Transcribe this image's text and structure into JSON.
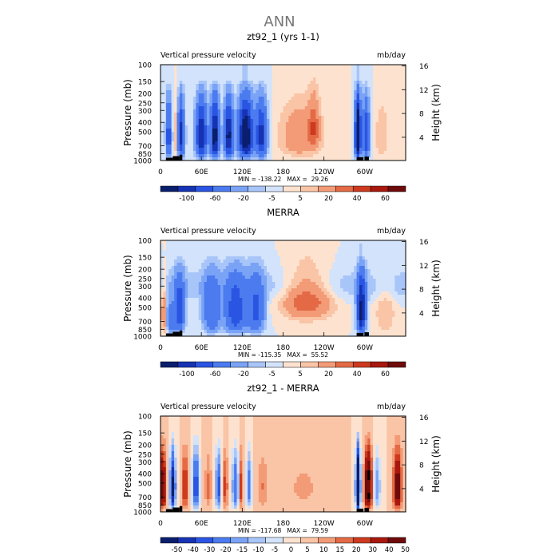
{
  "figure": {
    "title": "ANN"
  },
  "colors": {
    "scale1": [
      "#0a1e6e",
      "#1633b4",
      "#2a55e2",
      "#4b7bef",
      "#7aa3f6",
      "#a8c5f9",
      "#d2e3fb",
      "#fde3cf",
      "#fac4a6",
      "#f39b76",
      "#e46a46",
      "#cd3a1f",
      "#a8180d",
      "#6e0a0a"
    ],
    "scale2": [
      "#0a1e6e",
      "#1633b4",
      "#2a55e2",
      "#4b7bef",
      "#7aa3f6",
      "#a8c5f9",
      "#d2e3fb",
      "#fde3cf",
      "#fac4a6",
      "#f39b76",
      "#e46a46",
      "#cd3a1f",
      "#a8180d",
      "#6e0a0a"
    ],
    "topography": "#000000"
  },
  "chart_data": [
    {
      "type": "heatmap",
      "title": "zt92_1 (yrs 1-1)",
      "subtitle_left": "Vertical pressure velocity",
      "subtitle_right": "mb/day",
      "ylabel": "Pressure (mb)",
      "ylabel_right": "Height (km)",
      "x_ticks": [
        "0",
        "60E",
        "120E",
        "180",
        "120W",
        "60W"
      ],
      "y_ticks": [
        "100",
        "150",
        "200",
        "250",
        "300",
        "400",
        "500",
        "700",
        "850",
        "1000"
      ],
      "y_right_ticks": [
        "16",
        "12",
        "8",
        "4"
      ],
      "stats": "MIN = -138.22   MAX =  29.26",
      "colorbar_labels": [
        "-100",
        "-60",
        "-20",
        "-5",
        "5",
        "20",
        "40",
        "60"
      ],
      "colorbar_levels": [
        -100,
        -80,
        -60,
        -40,
        -20,
        -10,
        -5,
        0,
        5,
        10,
        20,
        30,
        40,
        60
      ],
      "min": -138.22,
      "max": 29.26
    },
    {
      "type": "heatmap",
      "title": "MERRA",
      "subtitle_left": "Vertical pressure velocity",
      "subtitle_right": "mb/day",
      "ylabel": "Pressure (mb)",
      "ylabel_right": "Height (km)",
      "x_ticks": [
        "0",
        "60E",
        "120E",
        "180",
        "120W",
        "60W"
      ],
      "y_ticks": [
        "100",
        "150",
        "200",
        "250",
        "300",
        "400",
        "500",
        "700",
        "850",
        "1000"
      ],
      "y_right_ticks": [
        "16",
        "12",
        "8",
        "4"
      ],
      "stats": "MIN = -115.35   MAX =  55.52",
      "colorbar_labels": [
        "-100",
        "-60",
        "-20",
        "-5",
        "5",
        "20",
        "40",
        "60"
      ],
      "colorbar_levels": [
        -100,
        -80,
        -60,
        -40,
        -20,
        -10,
        -5,
        0,
        5,
        10,
        20,
        30,
        40,
        60
      ],
      "min": -115.35,
      "max": 55.52
    },
    {
      "type": "heatmap",
      "title": "zt92_1 - MERRA",
      "subtitle_left": "Vertical pressure velocity",
      "subtitle_right": "mb/day",
      "ylabel": "Pressure (mb)",
      "ylabel_right": "Height (km)",
      "x_ticks": [
        "0",
        "60E",
        "120E",
        "180",
        "120W",
        "60W"
      ],
      "y_ticks": [
        "100",
        "150",
        "200",
        "250",
        "300",
        "400",
        "500",
        "700",
        "850",
        "1000"
      ],
      "y_right_ticks": [
        "16",
        "12",
        "8",
        "4"
      ],
      "stats": "MIN = -117.68   MAX =  79.59",
      "colorbar_labels": [
        "-50",
        "-40",
        "-30",
        "-20",
        "-15",
        "-10",
        "-5",
        "0",
        "5",
        "10",
        "15",
        "20",
        "30",
        "40",
        "50"
      ],
      "colorbar_levels": [
        -60,
        -50,
        -40,
        -30,
        -20,
        -15,
        -10,
        -5,
        0,
        5,
        10,
        15,
        20,
        30,
        40,
        50
      ],
      "min": -117.68,
      "max": 79.59
    }
  ]
}
